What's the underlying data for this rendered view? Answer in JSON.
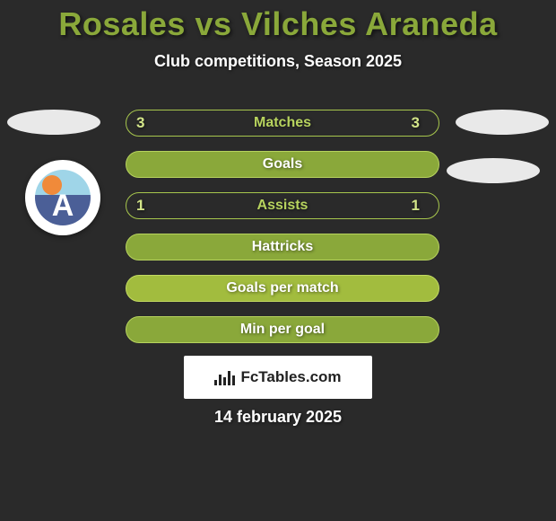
{
  "title_text": "Rosales vs Vilches Araneda",
  "title_color": "#8aa83a",
  "subtitle_text": "Club competitions, Season 2025",
  "subtitle_color": "#ffffff",
  "background_color": "#2a2a2a",
  "rows": [
    {
      "label": "Matches",
      "left": "3",
      "right": "3",
      "fill": "#2a2a2a",
      "border": "#a7c64d",
      "text": "#b7d35e"
    },
    {
      "label": "Goals",
      "left": "",
      "right": "",
      "fill": "#8aa83a",
      "border": "#b7d35e",
      "text": "#ffffff"
    },
    {
      "label": "Assists",
      "left": "1",
      "right": "1",
      "fill": "#2a2a2a",
      "border": "#a7c64d",
      "text": "#b7d35e"
    },
    {
      "label": "Hattricks",
      "left": "",
      "right": "",
      "fill": "#8aa83a",
      "border": "#b7d35e",
      "text": "#ffffff"
    },
    {
      "label": "Goals per match",
      "left": "",
      "right": "",
      "fill": "#a2bc3e",
      "border": "#c3da62",
      "text": "#ffffff"
    },
    {
      "label": "Min per goal",
      "left": "",
      "right": "",
      "fill": "#8aa83a",
      "border": "#b7d35e",
      "text": "#ffffff"
    }
  ],
  "value_color": "#d3e589",
  "ovals": {
    "color": "#e9e9e9"
  },
  "crest": {
    "sky": "#9fd5e8",
    "ground": "#4b5f97",
    "sun": "#f08a3a",
    "letter": "A",
    "letter_color": "#ffffff"
  },
  "footer": {
    "box_bg": "#ffffff",
    "icon_color": "#222222",
    "text": "FcTables.com",
    "text_color": "#222222"
  },
  "date_text": "14 february 2025",
  "date_color": "#ffffff"
}
